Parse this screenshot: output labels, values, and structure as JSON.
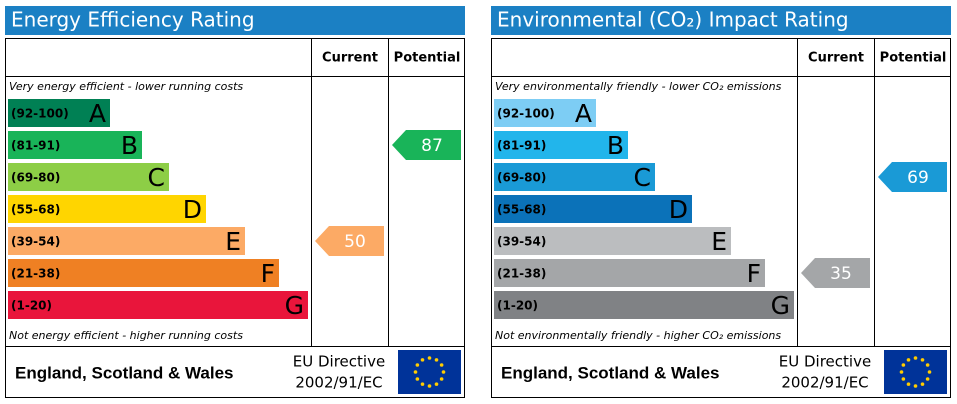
{
  "chart_data": [
    {
      "type": "epc",
      "title": "Energy Efficiency Rating",
      "columns": [
        "Current",
        "Potential"
      ],
      "top_note": "Very energy efficient - lower running costs",
      "bottom_note": "Not energy efficient - higher running costs",
      "bands": [
        {
          "range": "(92-100)",
          "letter": "A",
          "color": "#008054"
        },
        {
          "range": "(81-91)",
          "letter": "B",
          "color": "#19b459"
        },
        {
          "range": "(69-80)",
          "letter": "C",
          "color": "#8dce46"
        },
        {
          "range": "(55-68)",
          "letter": "D",
          "color": "#ffd500"
        },
        {
          "range": "(39-54)",
          "letter": "E",
          "color": "#fcaa65"
        },
        {
          "range": "(21-38)",
          "letter": "F",
          "color": "#ef8023"
        },
        {
          "range": "(1-20)",
          "letter": "G",
          "color": "#e9153b"
        }
      ],
      "current": 50,
      "potential": 87,
      "footer": {
        "region": "England, Scotland & Wales",
        "directive": "EU Directive",
        "directive_number": "2002/91/EC"
      }
    },
    {
      "type": "epc",
      "title": "Environmental (CO₂) Impact Rating",
      "columns": [
        "Current",
        "Potential"
      ],
      "top_note": "Very environmentally friendly - lower CO₂ emissions",
      "bottom_note": "Not environmentally friendly - higher CO₂ emissions",
      "bands": [
        {
          "range": "(92-100)",
          "letter": "A",
          "color": "#7dcdf4"
        },
        {
          "range": "(81-91)",
          "letter": "B",
          "color": "#22b5eb"
        },
        {
          "range": "(69-80)",
          "letter": "C",
          "color": "#1a9ad6"
        },
        {
          "range": "(55-68)",
          "letter": "D",
          "color": "#0b72b9"
        },
        {
          "range": "(39-54)",
          "letter": "E",
          "color": "#bbbdbf"
        },
        {
          "range": "(21-38)",
          "letter": "F",
          "color": "#a4a6a8"
        },
        {
          "range": "(1-20)",
          "letter": "G",
          "color": "#808285"
        }
      ],
      "current": 35,
      "potential": 69,
      "footer": {
        "region": "England, Scotland & Wales",
        "directive": "EU Directive",
        "directive_number": "2002/91/EC"
      }
    }
  ]
}
